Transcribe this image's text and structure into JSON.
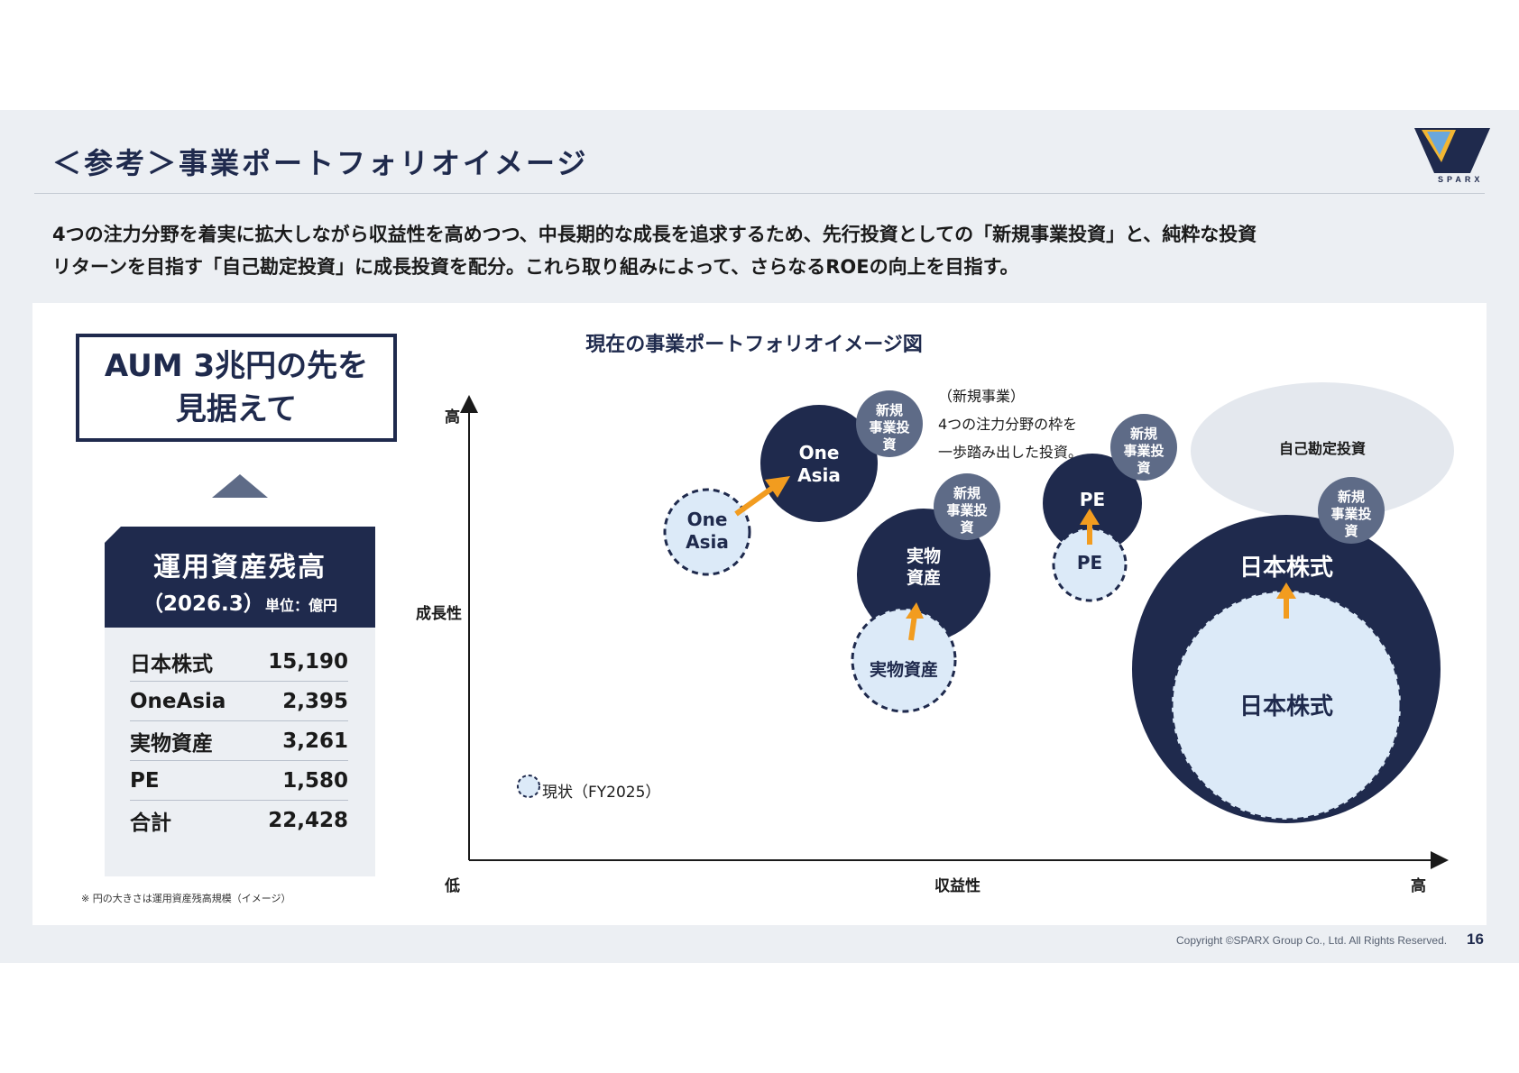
{
  "header": {
    "title": "＜参考＞事業ポートフォリオイメージ",
    "logo_text": "SPARX"
  },
  "lead": {
    "line1": "4つの注力分野を着実に拡大しながら収益性を高めつつ、中長期的な成長を追求するため、先行投資としての「新規事業投資」と、純粋な投資",
    "line2": "リターンを目指す「自己勘定投資」に成長投資を配分。これら取り組みによって、さらなるROEの向上を目指す。"
  },
  "aum": {
    "goal_line1": "AUM 3兆円の先を",
    "goal_line2": "見据えて",
    "table_title": "運用資産残高",
    "table_date": "（2026.3）",
    "table_unit": "単位：億円",
    "rows": [
      {
        "label": "日本株式",
        "value": "15,190"
      },
      {
        "label": "OneAsia",
        "value": "2,395"
      },
      {
        "label": "実物資産",
        "value": "3,261"
      },
      {
        "label": "PE",
        "value": "1,580"
      },
      {
        "label": "合計",
        "value": "22,428"
      }
    ],
    "note": "※ 円の大きさは運用資産残高規模（イメージ）"
  },
  "diagram": {
    "title": "現在の事業ポートフォリオイメージ図",
    "y_axis_label": "成長性",
    "y_high": "高",
    "origin_low": "低",
    "x_axis_label": "収益性",
    "x_high": "高",
    "annotation": {
      "line1": "（新規事業）",
      "line2": "4つの注力分野の枠を",
      "line3": "一歩踏み出した投資。"
    },
    "bubbles": {
      "oneasia_target_l1": "One",
      "oneasia_target_l2": "Asia",
      "oneasia_current_l1": "One",
      "oneasia_current_l2": "Asia",
      "real_target_l1": "実物",
      "real_target_l2": "資産",
      "real_current": "実物資産",
      "pe_target": "PE",
      "pe_current": "PE",
      "japan_target": "日本株式",
      "japan_current": "日本株式",
      "prop_invest": "自己勘定投資",
      "new_biz_l1": "新規",
      "new_biz_l2": "事業投",
      "new_biz_l3": "資"
    },
    "legend": "現状（FY2025）",
    "colors": {
      "navy": "#1f2a4d",
      "badge": "#5e6b87",
      "current_fill": "#dceaf8",
      "arrow": "#f29c1f",
      "ellipse": "#e4e8ee"
    }
  },
  "footer": {
    "copyright": "Copyright ©SPARX Group Co., Ltd. All Rights Reserved.",
    "page": "16"
  }
}
